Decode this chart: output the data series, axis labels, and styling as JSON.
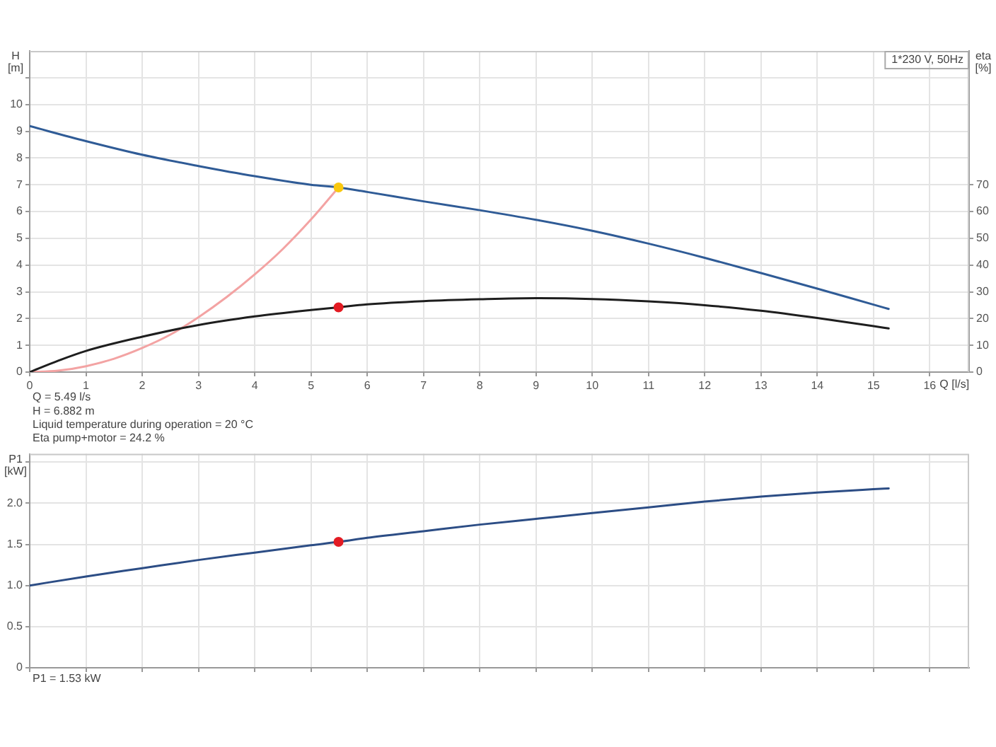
{
  "chart_data": [
    {
      "type": "line",
      "title": "1*230 V, 50Hz",
      "xlabel": "Q [l/s]",
      "ylabel": "H [m]",
      "y2label": "eta [%]",
      "xlim": [
        0,
        16.7
      ],
      "xticks": [
        0,
        1,
        2,
        3,
        4,
        5,
        6,
        7,
        8,
        9,
        10,
        11,
        12,
        13,
        14,
        15,
        16
      ],
      "ylim": [
        0,
        12
      ],
      "yticks": [
        0,
        1,
        2,
        3,
        4,
        5,
        6,
        7,
        8,
        9,
        10,
        {
          "value": 11,
          "label": null
        }
      ],
      "y2lim": [
        0,
        120
      ],
      "y2ticks": [
        0,
        10,
        20,
        30,
        40,
        50,
        60,
        70
      ],
      "grid": true,
      "series": [
        {
          "color": "#2f5b96",
          "x": [
            0,
            1,
            2,
            3,
            4,
            5,
            5.49,
            6,
            7,
            8,
            9,
            10,
            11,
            12,
            13,
            14,
            15,
            15.27
          ],
          "values": [
            9.19,
            8.63,
            8.12,
            7.7,
            7.32,
            7.0,
            6.9,
            6.73,
            6.38,
            6.05,
            5.69,
            5.28,
            4.8,
            4.27,
            3.7,
            3.12,
            2.52,
            2.36
          ]
        },
        {
          "color": "#1e1e1e",
          "axis": "y2",
          "x": [
            0,
            0.5,
            1,
            2,
            3,
            4,
            5,
            5.49,
            6,
            7,
            8,
            9,
            10,
            11,
            12,
            13,
            14,
            15,
            15.27
          ],
          "values": [
            0,
            4.2,
            7.9,
            13.2,
            17.6,
            20.8,
            23.2,
            24.2,
            25.3,
            26.5,
            27.2,
            27.6,
            27.3,
            26.4,
            25.0,
            22.9,
            20.2,
            17.2,
            16.3
          ]
        },
        {
          "color": "#f3a3a3",
          "x": [
            0,
            0.5,
            1,
            1.5,
            2,
            2.5,
            3,
            3.5,
            4,
            4.5,
            5,
            5.49
          ],
          "values": [
            0,
            0.05,
            0.22,
            0.5,
            0.9,
            1.4,
            2.05,
            2.8,
            3.65,
            4.6,
            5.7,
            6.9
          ]
        },
        {
          "type": "scatter",
          "marker": "circle",
          "color": "#f9c80e",
          "x": [
            5.49
          ],
          "values": [
            6.9
          ]
        },
        {
          "type": "scatter",
          "marker": "circle",
          "axis": "y2",
          "color": "#e31b23",
          "x": [
            5.49
          ],
          "values": [
            24.2
          ]
        }
      ],
      "annotations": [
        "Q = 5.49 l/s",
        "H = 6.882 m",
        "Liquid temperature during operation = 20 °C",
        "Eta pump+motor = 24.2 %"
      ]
    },
    {
      "type": "line",
      "ylabel": "P1 [kW]",
      "tick_labels": "y",
      "xlim": [
        0,
        16.7
      ],
      "xticks": [
        0,
        1,
        2,
        3,
        4,
        5,
        6,
        7,
        8,
        9,
        10,
        11,
        12,
        13,
        14,
        15,
        16
      ],
      "ylim": [
        0,
        2.6
      ],
      "yticks": [
        0,
        0.5,
        {
          "value": 1,
          "label": "1.0"
        },
        1.5,
        {
          "value": 2,
          "label": "2.0"
        },
        {
          "value": 2.5,
          "label": null
        }
      ],
      "grid": true,
      "series": [
        {
          "color": "#2c4d85",
          "x": [
            0,
            1,
            2,
            3,
            4,
            5,
            5.49,
            6,
            7,
            8,
            9,
            10,
            11,
            12,
            13,
            14,
            15,
            15.27
          ],
          "values": [
            1.0,
            1.11,
            1.21,
            1.31,
            1.4,
            1.49,
            1.53,
            1.58,
            1.66,
            1.74,
            1.81,
            1.88,
            1.95,
            2.02,
            2.08,
            2.13,
            2.17,
            2.18
          ]
        },
        {
          "type": "scatter",
          "marker": "circle",
          "color": "#e31b23",
          "x": [
            5.49
          ],
          "values": [
            1.53
          ]
        }
      ],
      "annotations": [
        "P1 = 1.53 kW"
      ]
    }
  ]
}
